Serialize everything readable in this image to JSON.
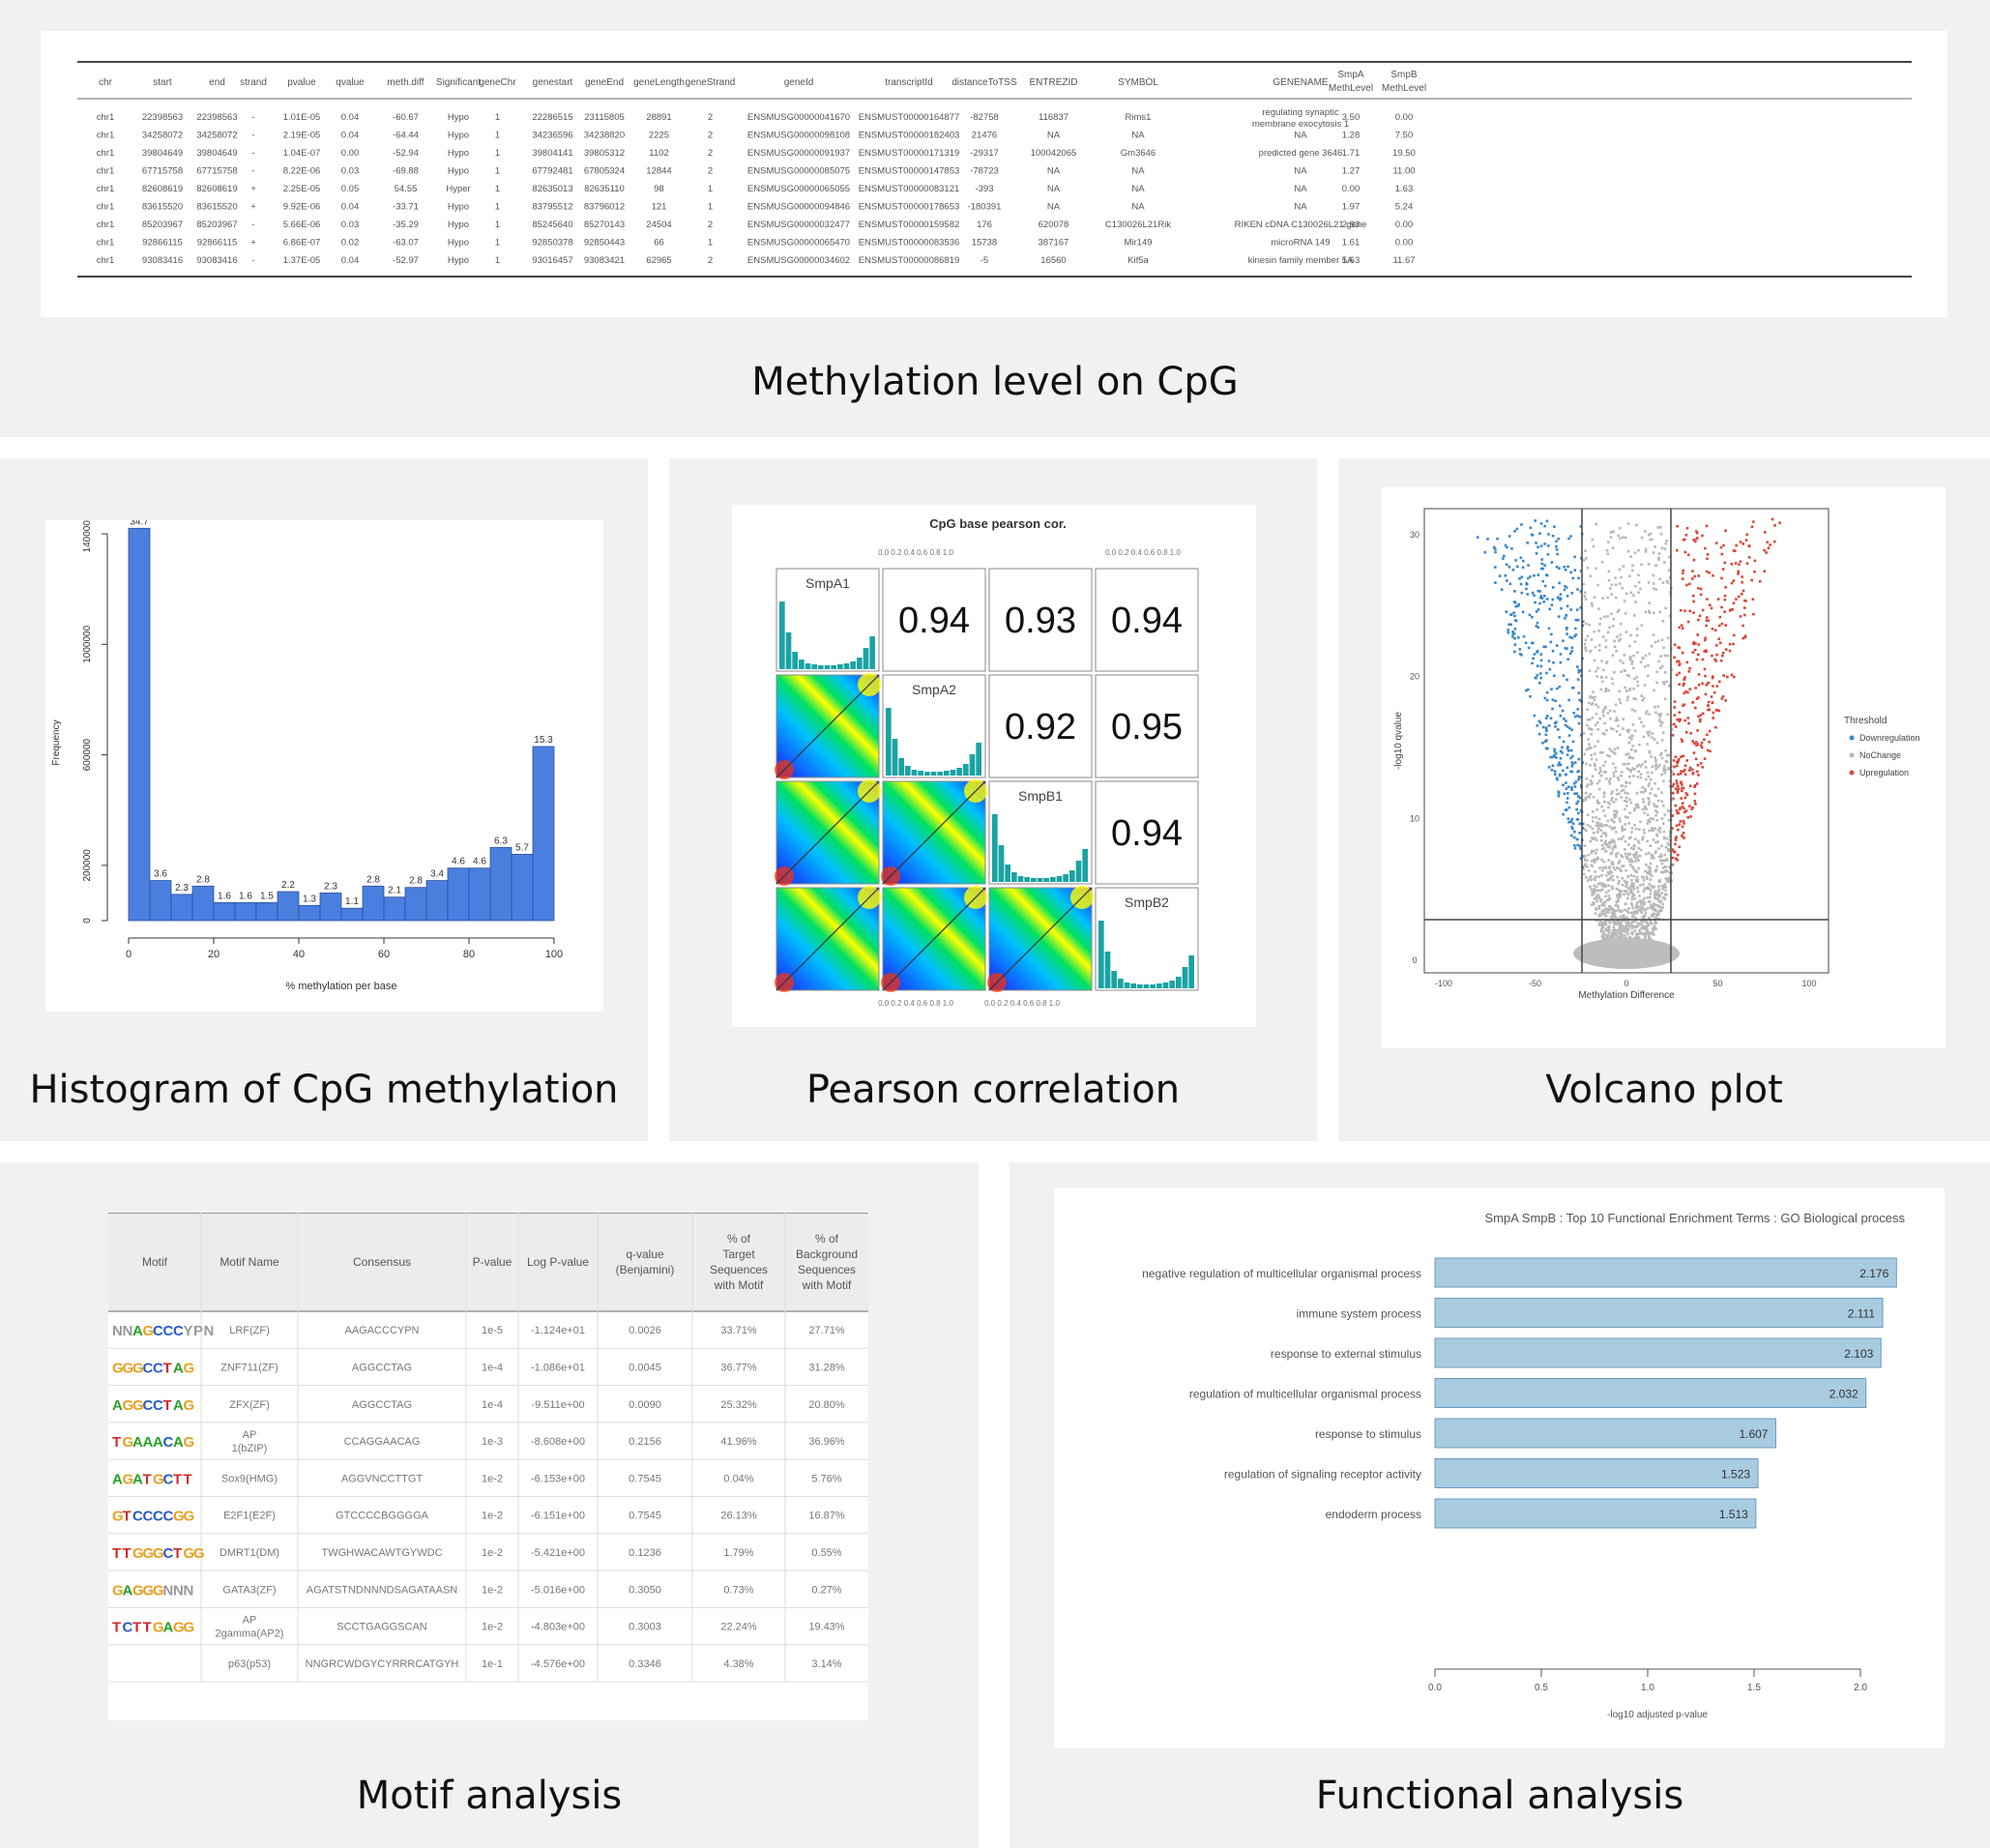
{
  "captions": {
    "methylation": "Methylation level on CpG",
    "histogram": "Histogram of  CpG methylation",
    "pearson": "Pearson correlation",
    "volcano": "Volcano plot",
    "motif": "Motif analysis",
    "functional": "Functional analysis"
  },
  "meth_table": {
    "headers": [
      "chr",
      "start",
      "end",
      "strand",
      "pvalue",
      "qvalue",
      "meth.diff",
      "Significant",
      "geneChr",
      "genestart",
      "geneEnd",
      "geneLength",
      "geneStrand",
      "geneId",
      "transcriptId",
      "distanceToTSS",
      "ENTREZID",
      "SYMBOL",
      "GENENAME",
      "SmpA MethLevel",
      "SmpB MethLevel"
    ],
    "rows": [
      [
        "chr1",
        "22398563",
        "22398563",
        "-",
        "1.01E-05",
        "0.04",
        "-60.67",
        "Hypo",
        "1",
        "22286515",
        "23115805",
        "28891",
        "2",
        "ENSMUSG00000041670",
        "ENSMUST00000164877",
        "-82758",
        "116837",
        "Rims1",
        "regulating synaptic membrane exocytosis 1",
        "3.50",
        "0.00"
      ],
      [
        "chr1",
        "34258072",
        "34258072",
        "-",
        "2.19E-05",
        "0.04",
        "-64.44",
        "Hypo",
        "1",
        "34236596",
        "34238820",
        "2225",
        "2",
        "ENSMUSG00000098108",
        "ENSMUST00000182403",
        "21476",
        "NA",
        "NA",
        "NA",
        "1.28",
        "7.50"
      ],
      [
        "chr1",
        "39804649",
        "39804649",
        "-",
        "1.04E-07",
        "0.00",
        "-52.94",
        "Hypo",
        "1",
        "39804141",
        "39805312",
        "1102",
        "2",
        "ENSMUSG00000091937",
        "ENSMUST00000171319",
        "-29317",
        "100042065",
        "Gm3646",
        "predicted gene 3646",
        "1.71",
        "19.50"
      ],
      [
        "chr1",
        "67715758",
        "67715758",
        "-",
        "8.22E-06",
        "0.03",
        "-69.88",
        "Hypo",
        "1",
        "67792481",
        "67805324",
        "12844",
        "2",
        "ENSMUSG00000085075",
        "ENSMUST00000147853",
        "-78723",
        "NA",
        "NA",
        "NA",
        "1.27",
        "11.00"
      ],
      [
        "chr1",
        "82608619",
        "82608619",
        "+",
        "2.25E-05",
        "0.05",
        "54.55",
        "Hyper",
        "1",
        "82635013",
        "82635110",
        "98",
        "1",
        "ENSMUSG00000065055",
        "ENSMUST00000083121",
        "-393",
        "NA",
        "NA",
        "NA",
        "0.00",
        "1.63"
      ],
      [
        "chr1",
        "83615520",
        "83615520",
        "+",
        "9.92E-06",
        "0.04",
        "-33.71",
        "Hypo",
        "1",
        "83795512",
        "83796012",
        "121",
        "1",
        "ENSMUSG00000094846",
        "ENSMUST00000178653",
        "-180391",
        "NA",
        "NA",
        "NA",
        "1.97",
        "5.24"
      ],
      [
        "chr1",
        "85203967",
        "85203967",
        "-",
        "5.66E-06",
        "0.03",
        "-35.29",
        "Hypo",
        "1",
        "85245640",
        "85270143",
        "24504",
        "2",
        "ENSMUSG00000032477",
        "ENSMUST00000159582",
        "176",
        "620078",
        "C130026L21Rik",
        "RIKEN cDNA C130026L21 gene",
        "2.83",
        "0.00"
      ],
      [
        "chr1",
        "92866115",
        "92866115",
        "+",
        "6.86E-07",
        "0.02",
        "-63.07",
        "Hypo",
        "1",
        "92850378",
        "92850443",
        "66",
        "1",
        "ENSMUSG00000065470",
        "ENSMUST00000083536",
        "15738",
        "387167",
        "Mir149",
        "microRNA 149",
        "1.61",
        "0.00"
      ],
      [
        "chr1",
        "93083416",
        "93083416",
        "-",
        "1.37E-05",
        "0.04",
        "-52.97",
        "Hypo",
        "1",
        "93016457",
        "93083421",
        "62965",
        "2",
        "ENSMUSG00000034602",
        "ENSMUST00000086819",
        "-5",
        "16560",
        "Kif5a",
        "kinesin family member 5A",
        "1.63",
        "11.67"
      ]
    ]
  },
  "histogram": {
    "chart_data": {
      "type": "bar",
      "title": "",
      "xlabel": "% methylation per base",
      "ylabel": "Frequency",
      "bin_width": 5,
      "xlim": [
        0,
        100
      ],
      "ylim": [
        0,
        1400000
      ],
      "x_ticks": [
        "0",
        "20",
        "40",
        "60",
        "80",
        "100"
      ],
      "y_ticks": [
        "0",
        "200000",
        "600000",
        "1000000",
        "1400000"
      ],
      "values": [
        1420000,
        145000,
        95000,
        125000,
        65000,
        65000,
        65000,
        105000,
        55000,
        100000,
        45000,
        125000,
        85000,
        120000,
        145000,
        190000,
        190000,
        265000,
        240000,
        630000
      ],
      "labels": [
        "34.7",
        "3.6",
        "2.3",
        "2.8",
        "1.6",
        "1.6",
        "1.5",
        "2.2",
        "1.3",
        "2.3",
        "1.1",
        "2.8",
        "2.1",
        "2.8",
        "3.4",
        "4.6",
        "4.6",
        "6.3",
        "5.7",
        "15.3"
      ],
      "color": "#4a7fe0"
    }
  },
  "pearson": {
    "title": "CpG base pearson cor.",
    "samples": [
      "SmpA1",
      "SmpA2",
      "SmpB1",
      "SmpB2"
    ],
    "correlations": [
      [
        "",
        "0.94",
        "0.93",
        "0.94"
      ],
      [
        "",
        "",
        "0.92",
        "0.95"
      ],
      [
        "",
        "",
        "",
        "0.94"
      ]
    ],
    "ticks_top": "0.0 0.2 0.4 0.6 0.8 1.0",
    "ticks_bottom": "0.0 0.2 0.4 0.6 0.8 1.0",
    "hist_color": "#1aa3a3",
    "density_colors": [
      "#1a1aff",
      "#00c0ff",
      "#00e060",
      "#ffff00",
      "#ff3300"
    ]
  },
  "volcano": {
    "xlabel": "Methylation Difference",
    "ylabel": "-log10 qvalue",
    "legend_title": "Threshold",
    "legend_items": [
      {
        "label": "Downregulation",
        "color": "#3a87c8"
      },
      {
        "label": "NoChange",
        "color": "#b8b8b8"
      },
      {
        "label": "Upregulation",
        "color": "#d8473a"
      }
    ],
    "x_ticks": [
      "-100",
      "-50",
      "0",
      "50",
      "100"
    ],
    "y_ticks": [
      "0",
      "10",
      "20",
      "30"
    ]
  },
  "motif": {
    "headers": [
      "Motif",
      "Motif Name",
      "Consensus",
      "P-value",
      "Log P-value",
      "q-value (Benjamini)",
      "% of Target Sequences with Motif",
      "% of Background Sequences with Motif"
    ],
    "rows": [
      [
        "NNAGCCCYPN",
        "LRF(ZF)",
        "AAGACCCYPN",
        "1e-5",
        "-1.124e+01",
        "0.0026",
        "33.71%",
        "27.71%"
      ],
      [
        "GGGCCTAG",
        "ZNF711(ZF)",
        "AGGCCTAG",
        "1e-4",
        "-1.086e+01",
        "0.0045",
        "36.77%",
        "31.28%"
      ],
      [
        "AGGCCTAG",
        "ZFX(ZF)",
        "AGGCCTAG",
        "1e-4",
        "-9.511e+00",
        "0.0090",
        "25.32%",
        "20.80%"
      ],
      [
        "TGAAACAG",
        "AP-1(bZIP)",
        "CCAGGAACAG",
        "1e-3",
        "-8.608e+00",
        "0.2156",
        "41.96%",
        "36.96%"
      ],
      [
        "AGATGCTT",
        "Sox9(HMG)",
        "AGGVNCCTTGT",
        "1e-2",
        "-6.153e+00",
        "0.7545",
        "0.04%",
        "5.76%"
      ],
      [
        "GTCCCCGG",
        "E2F1(E2F)",
        "GTCCCCBGGGGA",
        "1e-2",
        "-6.151e+00",
        "0.7545",
        "26.13%",
        "16.87%"
      ],
      [
        "TTGGGCTGG",
        "DMRT1(DM)",
        "TWGHWACAWTGYWDC",
        "1e-2",
        "-5.421e+00",
        "0.1236",
        "1.79%",
        "0.55%"
      ],
      [
        "GAGGGNNN",
        "GATA3(ZF)",
        "AGATSTNDNNNDSAGATAASN",
        "1e-2",
        "-5.016e+00",
        "0.3050",
        "0.73%",
        "0.27%"
      ],
      [
        "TCTTGAGG",
        "AP-2gamma(AP2)",
        "SCCTGAGGSCAN",
        "1e-2",
        "-4.803e+00",
        "0.3003",
        "22.24%",
        "19.43%"
      ],
      [
        "",
        "p63(p53)",
        "NNGRCWDGYCYRRRCATGYH",
        "1e-1",
        "-4.576e+00",
        "0.3346",
        "4.38%",
        "3.14%"
      ]
    ]
  },
  "functional": {
    "chart_data": {
      "type": "bar",
      "orientation": "horizontal",
      "title": "SmpA SmpB : Top 10 Functional Enrichment Terms : GO Biological process",
      "xlabel": "-log10 adjusted p-value",
      "categories": [
        "negative regulation of multicellular organismal process",
        "immune system process",
        "response to external stimulus",
        "regulation of multicellular organismal process",
        "response to stimulus",
        "regulation of signaling receptor activity",
        "endoderm process"
      ],
      "values": [
        2.176,
        2.111,
        2.103,
        2.032,
        1.607,
        1.523,
        1.513
      ],
      "value_labels": [
        "2.176",
        "2.111",
        "2.103",
        "2.032",
        "1.607",
        "1.523",
        "1.513"
      ],
      "xlim": [
        0,
        2.0
      ],
      "x_ticks": [
        "0.0",
        "0.5",
        "1.0",
        "1.5",
        "2.0"
      ],
      "color": "#a8cbe0"
    }
  }
}
